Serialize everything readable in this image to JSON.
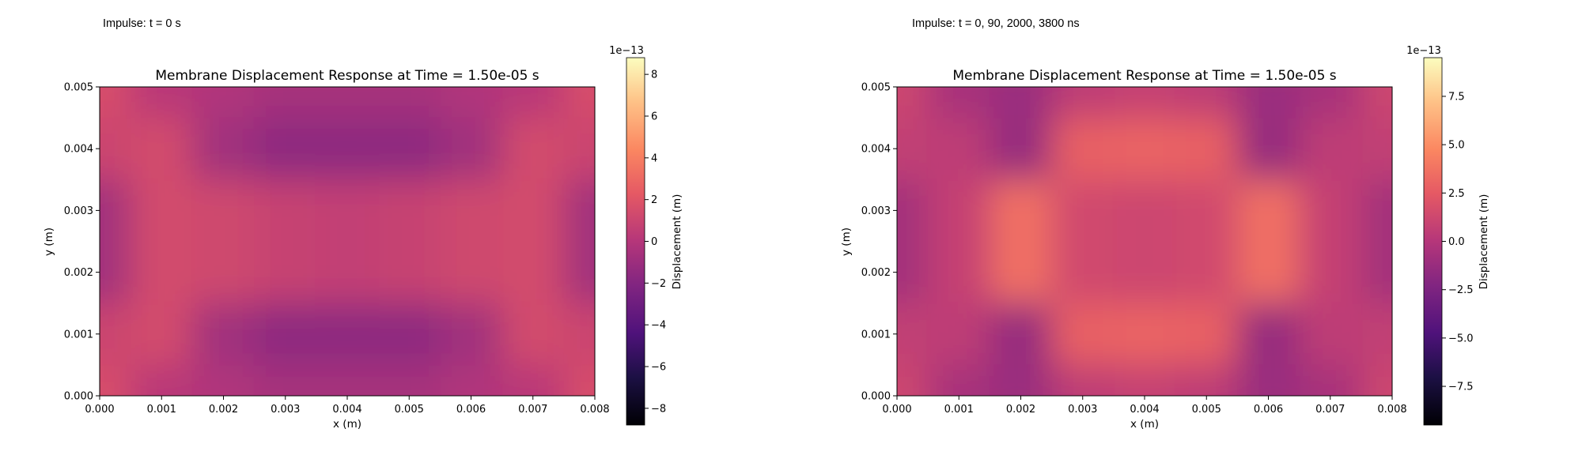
{
  "chart_data": [
    {
      "type": "heatmap",
      "caption": "Impulse: t = 0 s",
      "title": "Membrane Displacement Response at Time = 1.50e-05 s",
      "xlabel": "x (m)",
      "ylabel": "y (m)",
      "xlim": [
        0.0,
        0.008
      ],
      "ylim": [
        0.0,
        0.005
      ],
      "xticks": [
        "0.000",
        "0.001",
        "0.002",
        "0.003",
        "0.004",
        "0.005",
        "0.006",
        "0.007",
        "0.008"
      ],
      "yticks": [
        "0.000",
        "0.001",
        "0.002",
        "0.003",
        "0.004",
        "0.005"
      ],
      "colormap": "magma",
      "colorbar": {
        "label": "Displacement (m)",
        "scale_label": "1e−13",
        "vmin": -8.8,
        "vmax": 8.8,
        "ticks": [
          "−8",
          "−6",
          "−4",
          "−2",
          "0",
          "2",
          "4",
          "6",
          "8"
        ],
        "tick_values": [
          -8,
          -6,
          -4,
          -2,
          0,
          2,
          4,
          6,
          8
        ]
      },
      "field": {
        "description_values": "displacement ×1e-13 m",
        "x_samples": [
          0.0,
          0.001,
          0.002,
          0.003,
          0.004,
          0.005,
          0.006,
          0.007,
          0.008
        ],
        "y_samples": [
          0.005,
          0.004,
          0.003,
          0.002,
          0.001,
          0.0
        ],
        "values": [
          [
            1.6,
            0.2,
            -0.2,
            -0.6,
            -0.6,
            -0.6,
            -0.2,
            0.2,
            1.6
          ],
          [
            1.0,
            1.4,
            -0.8,
            -1.6,
            -1.6,
            -1.6,
            -0.8,
            1.4,
            1.0
          ],
          [
            -0.8,
            1.4,
            1.2,
            0.8,
            0.6,
            0.8,
            1.2,
            1.4,
            -0.8
          ],
          [
            -0.8,
            1.4,
            1.2,
            0.8,
            0.6,
            0.8,
            1.2,
            1.4,
            -0.8
          ],
          [
            1.0,
            1.4,
            -0.8,
            -1.6,
            -1.6,
            -1.6,
            -0.8,
            1.4,
            1.0
          ],
          [
            1.6,
            0.2,
            -0.2,
            -0.6,
            -0.6,
            -0.6,
            -0.2,
            0.2,
            1.6
          ]
        ]
      }
    },
    {
      "type": "heatmap",
      "caption": "Impulse: t = 0, 90, 2000, 3800 ns",
      "title": "Membrane Displacement Response at Time = 1.50e-05 s",
      "xlabel": "x (m)",
      "ylabel": "y (m)",
      "xlim": [
        0.0,
        0.008
      ],
      "ylim": [
        0.0,
        0.005
      ],
      "xticks": [
        "0.000",
        "0.001",
        "0.002",
        "0.003",
        "0.004",
        "0.005",
        "0.006",
        "0.007",
        "0.008"
      ],
      "yticks": [
        "0.000",
        "0.001",
        "0.002",
        "0.003",
        "0.004",
        "0.005"
      ],
      "colormap": "magma",
      "colorbar": {
        "label": "Displacement (m)",
        "scale_label": "1e−13",
        "vmin": -9.5,
        "vmax": 9.5,
        "ticks": [
          "−7.5",
          "−5.0",
          "−2.5",
          "0.0",
          "2.5",
          "5.0",
          "7.5"
        ],
        "tick_values": [
          -7.5,
          -5.0,
          -2.5,
          0.0,
          2.5,
          5.0,
          7.5
        ]
      },
      "field": {
        "description_values": "displacement ×1e-13 m",
        "x_samples": [
          0.0,
          0.001,
          0.002,
          0.003,
          0.004,
          0.005,
          0.006,
          0.007,
          0.008
        ],
        "y_samples": [
          0.005,
          0.004,
          0.003,
          0.002,
          0.001,
          0.0
        ],
        "values": [
          [
            1.2,
            -0.6,
            -1.2,
            0.4,
            0.8,
            0.4,
            -1.2,
            -0.6,
            1.2
          ],
          [
            0.6,
            0.4,
            -1.4,
            2.8,
            3.0,
            2.8,
            -1.4,
            0.4,
            0.6
          ],
          [
            -0.8,
            0.8,
            3.6,
            1.4,
            1.2,
            1.4,
            3.6,
            0.8,
            -0.8
          ],
          [
            -0.8,
            0.8,
            3.6,
            1.4,
            1.2,
            1.4,
            3.6,
            0.8,
            -0.8
          ],
          [
            0.6,
            0.4,
            -1.4,
            2.8,
            3.0,
            2.8,
            -1.4,
            0.4,
            0.6
          ],
          [
            1.2,
            -0.6,
            -1.2,
            0.4,
            0.8,
            0.4,
            -1.2,
            -0.6,
            1.2
          ]
        ]
      }
    }
  ]
}
